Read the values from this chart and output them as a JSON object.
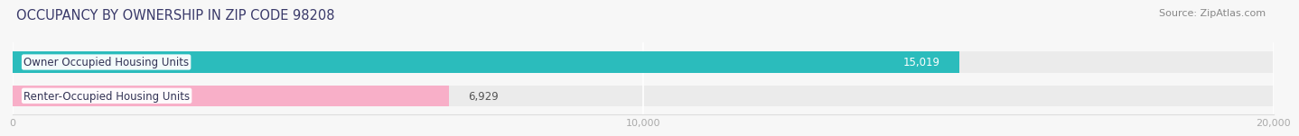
{
  "title": "OCCUPANCY BY OWNERSHIP IN ZIP CODE 98208",
  "source": "Source: ZipAtlas.com",
  "categories": [
    "Owner Occupied Housing Units",
    "Renter-Occupied Housing Units"
  ],
  "values": [
    15019,
    6929
  ],
  "bar_colors": [
    "#2bbcbc",
    "#f8afc8"
  ],
  "value_labels": [
    "15,019",
    "6,929"
  ],
  "xlim": [
    0,
    20000
  ],
  "xtick_labels": [
    "0",
    "10,000",
    "20,000"
  ],
  "xtick_vals": [
    0,
    10000,
    20000
  ],
  "background_color": "#f7f7f7",
  "bar_background": "#ebebeb",
  "title_fontsize": 10.5,
  "source_fontsize": 8,
  "label_fontsize": 8.5,
  "value_fontsize": 8.5,
  "title_color": "#3a3a6a",
  "tick_color": "#aaaaaa"
}
